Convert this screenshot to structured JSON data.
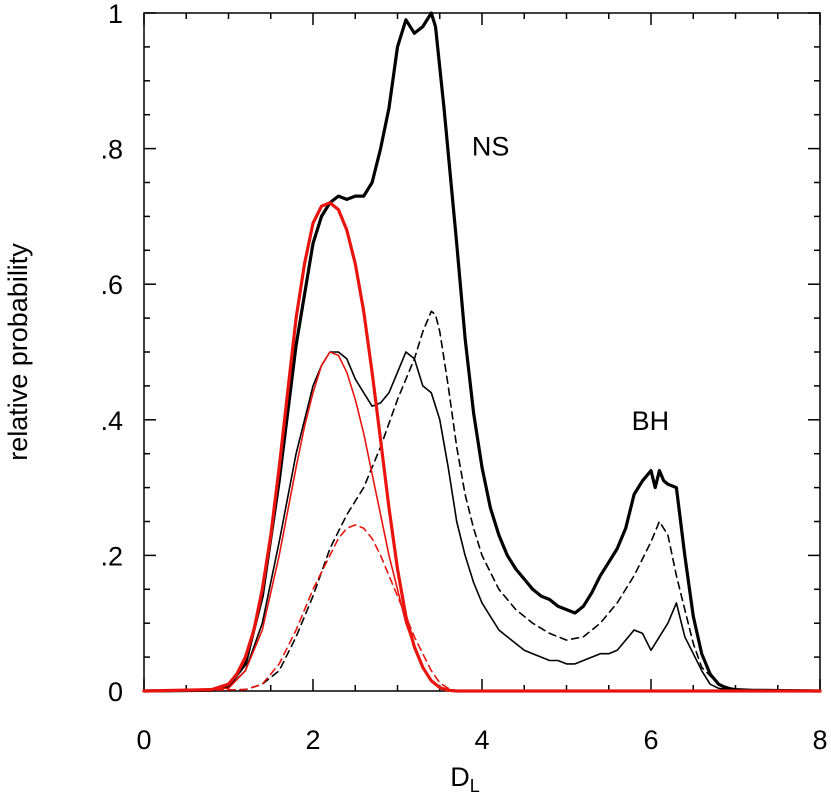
{
  "chart_data": {
    "type": "line",
    "title": "",
    "xlabel": "D",
    "xlabel_subscript": "L",
    "ylabel": "relative probability",
    "xlim": [
      0,
      8
    ],
    "ylim": [
      0,
      1
    ],
    "grid": false,
    "x_ticks": [
      0,
      2,
      4,
      6,
      8
    ],
    "x_tick_labels": [
      "0",
      "2",
      "4",
      "6",
      "8"
    ],
    "y_ticks": [
      0,
      0.2,
      0.4,
      0.6,
      0.8,
      1
    ],
    "y_tick_labels": [
      "0",
      ".2",
      ".4",
      ".6",
      ".8",
      "1"
    ],
    "annotations": [
      {
        "text": "NS",
        "x": 3.88,
        "y": 0.79
      },
      {
        "text": "BH",
        "x": 5.77,
        "y": 0.385
      }
    ],
    "series": [
      {
        "name": "total (black thick)",
        "color": "#000000",
        "style": "solid",
        "weight": "thick",
        "x": [
          0,
          0.8,
          1.0,
          1.2,
          1.4,
          1.6,
          1.8,
          2.0,
          2.1,
          2.2,
          2.3,
          2.4,
          2.5,
          2.6,
          2.7,
          2.8,
          2.9,
          3.0,
          3.1,
          3.2,
          3.3,
          3.4,
          3.45,
          3.55,
          3.7,
          3.8,
          3.9,
          4.0,
          4.1,
          4.2,
          4.3,
          4.4,
          4.5,
          4.6,
          4.7,
          4.8,
          4.9,
          5.0,
          5.1,
          5.2,
          5.3,
          5.4,
          5.5,
          5.6,
          5.7,
          5.8,
          5.9,
          6.0,
          6.05,
          6.1,
          6.15,
          6.2,
          6.3,
          6.4,
          6.5,
          6.6,
          6.7,
          6.8,
          6.9,
          7.0,
          7.2,
          8.0
        ],
        "y": [
          0,
          0.001,
          0.008,
          0.04,
          0.14,
          0.31,
          0.51,
          0.66,
          0.7,
          0.72,
          0.73,
          0.725,
          0.73,
          0.73,
          0.75,
          0.8,
          0.86,
          0.95,
          0.99,
          0.97,
          0.98,
          1.0,
          0.98,
          0.86,
          0.66,
          0.52,
          0.41,
          0.33,
          0.27,
          0.23,
          0.2,
          0.18,
          0.165,
          0.15,
          0.14,
          0.135,
          0.125,
          0.12,
          0.115,
          0.125,
          0.145,
          0.17,
          0.19,
          0.21,
          0.24,
          0.29,
          0.31,
          0.325,
          0.3,
          0.325,
          0.31,
          0.305,
          0.3,
          0.2,
          0.11,
          0.055,
          0.025,
          0.01,
          0.004,
          0.002,
          0.001,
          0
        ]
      },
      {
        "name": "thin black",
        "color": "#000000",
        "style": "solid",
        "weight": "thin",
        "x": [
          0,
          0.8,
          1.0,
          1.2,
          1.4,
          1.6,
          1.8,
          2.0,
          2.1,
          2.2,
          2.3,
          2.4,
          2.5,
          2.6,
          2.7,
          2.8,
          2.9,
          3.0,
          3.1,
          3.2,
          3.3,
          3.4,
          3.5,
          3.6,
          3.7,
          3.8,
          3.9,
          4.0,
          4.1,
          4.2,
          4.3,
          4.4,
          4.5,
          4.6,
          4.7,
          4.8,
          4.9,
          5.0,
          5.1,
          5.2,
          5.3,
          5.4,
          5.5,
          5.6,
          5.7,
          5.8,
          5.9,
          6.0,
          6.1,
          6.2,
          6.3,
          6.4,
          6.5,
          6.6,
          6.7,
          6.8,
          7.0,
          8.0
        ],
        "y": [
          0,
          0.001,
          0.005,
          0.03,
          0.1,
          0.22,
          0.35,
          0.45,
          0.48,
          0.5,
          0.5,
          0.49,
          0.46,
          0.44,
          0.42,
          0.425,
          0.44,
          0.47,
          0.5,
          0.49,
          0.45,
          0.44,
          0.4,
          0.33,
          0.25,
          0.2,
          0.16,
          0.13,
          0.11,
          0.09,
          0.08,
          0.07,
          0.06,
          0.055,
          0.05,
          0.045,
          0.045,
          0.04,
          0.04,
          0.045,
          0.05,
          0.055,
          0.055,
          0.06,
          0.075,
          0.09,
          0.085,
          0.06,
          0.08,
          0.1,
          0.13,
          0.08,
          0.055,
          0.03,
          0.01,
          0.004,
          0.001,
          0
        ]
      },
      {
        "name": "dashed black",
        "color": "#000000",
        "style": "dashed",
        "weight": "thin",
        "x": [
          0,
          1.2,
          1.4,
          1.6,
          1.8,
          2.0,
          2.2,
          2.4,
          2.6,
          2.8,
          3.0,
          3.2,
          3.3,
          3.4,
          3.45,
          3.5,
          3.6,
          3.7,
          3.8,
          3.9,
          4.0,
          4.2,
          4.4,
          4.6,
          4.8,
          5.0,
          5.2,
          5.4,
          5.6,
          5.8,
          6.0,
          6.1,
          6.2,
          6.3,
          6.4,
          6.5,
          6.6,
          6.8,
          7.0,
          8.0
        ],
        "y": [
          0,
          0.002,
          0.01,
          0.03,
          0.08,
          0.14,
          0.21,
          0.26,
          0.3,
          0.36,
          0.43,
          0.49,
          0.53,
          0.56,
          0.555,
          0.53,
          0.45,
          0.36,
          0.29,
          0.24,
          0.2,
          0.15,
          0.12,
          0.1,
          0.085,
          0.075,
          0.08,
          0.1,
          0.13,
          0.17,
          0.22,
          0.25,
          0.23,
          0.17,
          0.12,
          0.07,
          0.035,
          0.01,
          0.002,
          0
        ]
      },
      {
        "name": "red thick",
        "color": "#e8150f",
        "style": "solid",
        "weight": "thick",
        "x": [
          0,
          0.8,
          1.0,
          1.1,
          1.2,
          1.3,
          1.4,
          1.5,
          1.6,
          1.7,
          1.8,
          1.9,
          2.0,
          2.1,
          2.2,
          2.3,
          2.4,
          2.5,
          2.6,
          2.7,
          2.8,
          2.9,
          3.0,
          3.1,
          3.2,
          3.3,
          3.4,
          3.5,
          3.6,
          3.7,
          8.0
        ],
        "y": [
          0,
          0.002,
          0.01,
          0.025,
          0.05,
          0.09,
          0.15,
          0.23,
          0.33,
          0.44,
          0.55,
          0.63,
          0.69,
          0.715,
          0.72,
          0.71,
          0.68,
          0.63,
          0.56,
          0.47,
          0.37,
          0.27,
          0.18,
          0.11,
          0.065,
          0.035,
          0.015,
          0.005,
          0.001,
          0,
          0
        ]
      },
      {
        "name": "red thin",
        "color": "#e8150f",
        "style": "solid",
        "weight": "thin",
        "x": [
          0,
          1.0,
          1.2,
          1.4,
          1.6,
          1.8,
          1.9,
          2.0,
          2.1,
          2.2,
          2.3,
          2.4,
          2.5,
          2.6,
          2.7,
          2.8,
          2.9,
          3.0,
          3.1,
          3.2,
          3.3,
          3.4,
          3.5,
          3.6,
          3.7,
          8.0
        ],
        "y": [
          0,
          0.004,
          0.03,
          0.09,
          0.2,
          0.33,
          0.39,
          0.44,
          0.48,
          0.5,
          0.495,
          0.47,
          0.43,
          0.38,
          0.32,
          0.26,
          0.2,
          0.15,
          0.1,
          0.065,
          0.035,
          0.015,
          0.005,
          0.002,
          0,
          0
        ]
      },
      {
        "name": "red dashed",
        "color": "#e8150f",
        "style": "dashed",
        "weight": "thin",
        "x": [
          0,
          1.2,
          1.4,
          1.6,
          1.8,
          2.0,
          2.2,
          2.3,
          2.4,
          2.5,
          2.6,
          2.7,
          2.8,
          2.9,
          3.0,
          3.1,
          3.2,
          3.3,
          3.4,
          3.5,
          3.6,
          3.7,
          8.0
        ],
        "y": [
          0,
          0.002,
          0.01,
          0.04,
          0.09,
          0.15,
          0.2,
          0.225,
          0.24,
          0.245,
          0.24,
          0.225,
          0.2,
          0.17,
          0.14,
          0.11,
          0.08,
          0.055,
          0.03,
          0.012,
          0.004,
          0,
          0
        ]
      }
    ]
  }
}
